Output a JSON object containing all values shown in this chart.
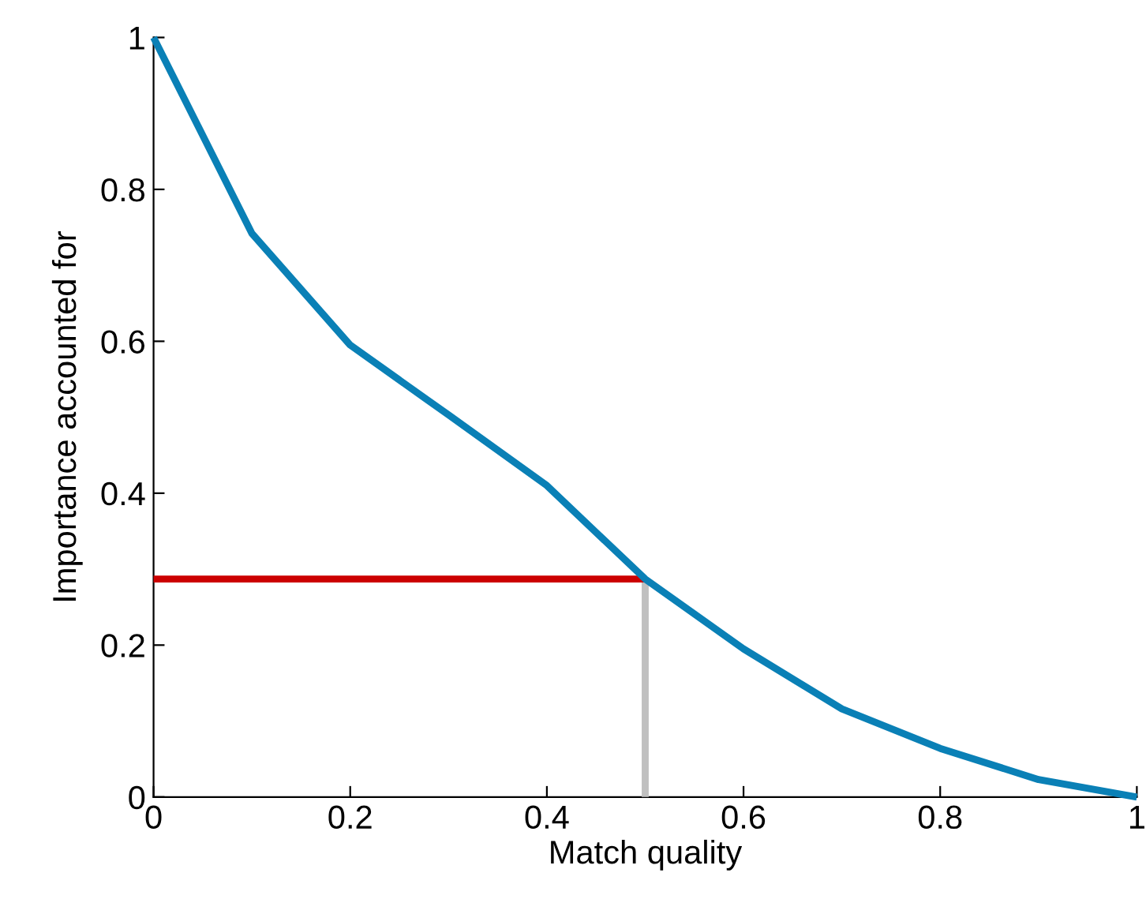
{
  "chart_data": {
    "type": "line",
    "xlabel": "Match quality",
    "ylabel": "Importance accounted for",
    "xlim": [
      0,
      1
    ],
    "ylim": [
      0,
      1
    ],
    "xticks": [
      0,
      0.2,
      0.4,
      0.6,
      0.8,
      1
    ],
    "yticks": [
      0,
      0.2,
      0.4,
      0.6,
      0.8,
      1
    ],
    "marker": "none",
    "line_style": "solid",
    "series": [
      {
        "color": "#0a80b6",
        "x": [
          0,
          0.1,
          0.2,
          0.3,
          0.4,
          0.5,
          0.6,
          0.7,
          0.8,
          0.9,
          1
        ],
        "values": [
          1,
          0.742,
          0.595,
          0.503,
          0.41,
          0.287,
          0.195,
          0.116,
          0.064,
          0.023,
          0
        ]
      },
      {
        "color": "#cc0000",
        "x": [
          0,
          0.5
        ],
        "values": [
          0.287,
          0.287
        ]
      },
      {
        "color": "#c0c0c0",
        "x": [
          0.5,
          0.5
        ],
        "values": [
          0,
          0.287
        ]
      }
    ]
  }
}
